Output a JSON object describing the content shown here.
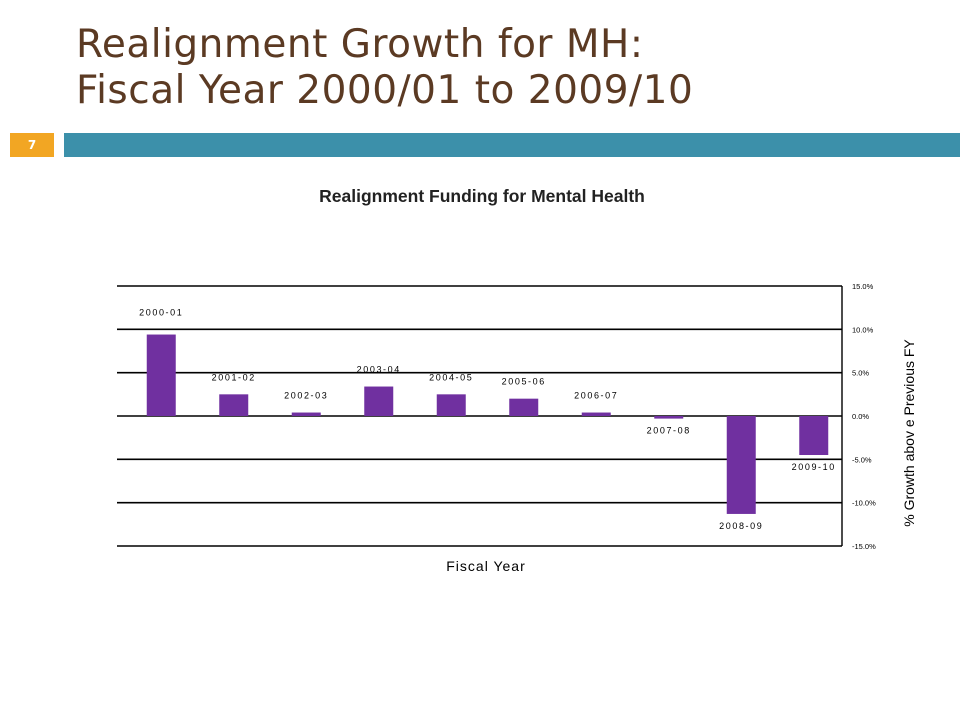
{
  "slide": {
    "title_line1": "Realignment Growth for MH:",
    "title_line2": "Fiscal Year 2000/01 to 2009/10",
    "page_number": "7"
  },
  "colors": {
    "title_text": "#5b3a23",
    "title_bar": "#3c90aa",
    "page_badge": "#f2a623",
    "bars": "#7030a0"
  },
  "chart_data": {
    "type": "bar",
    "title": "Realignment Funding for Mental Health",
    "xlabel": "Fiscal Year",
    "ylabel": "% Growth abov e Previous FY",
    "y_axis_position": "right",
    "ylim": [
      -15,
      15
    ],
    "y_ticks": [
      "15.0%",
      "10.0%",
      "5.0%",
      "0.0%",
      "-5.0%",
      "-10.0%",
      "-15.0%"
    ],
    "gridlines": true,
    "categories": [
      "2000-01",
      "2001-02",
      "2002-03",
      "2003-04",
      "2004-05",
      "2005-06",
      "2006-07",
      "2007-08",
      "2008-09",
      "2009-10"
    ],
    "values": [
      9.4,
      2.5,
      0.4,
      3.4,
      2.5,
      2.0,
      0.4,
      -0.3,
      -11.3,
      -4.5
    ]
  }
}
